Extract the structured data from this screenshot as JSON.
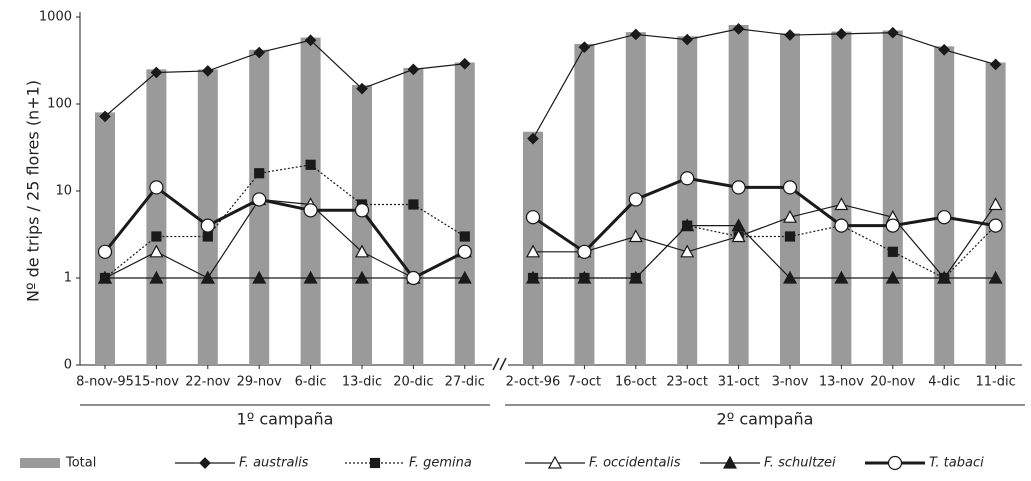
{
  "chart_data": {
    "type": "bar_line",
    "ylabel": "Nº de trips / 25 flores (n+1)",
    "log_scale": true,
    "ylim": [
      0.1,
      1000
    ],
    "yticks": [
      {
        "value": 0.1,
        "label": "0"
      },
      1,
      10,
      100,
      1000
    ],
    "groups": [
      "1º campaña",
      "2º campaña"
    ],
    "categories": [
      [
        "8-nov-95",
        "15-nov",
        "22-nov",
        "29-nov",
        "6-dic",
        "13-dic",
        "20-dic",
        "27-dic"
      ],
      [
        "2-oct-96",
        "7-oct",
        "16-oct",
        "23-oct",
        "31-oct",
        "3-nov",
        "13-nov",
        "20-nov",
        "4-dic",
        "11-dic"
      ]
    ],
    "series": [
      {
        "name": "Total",
        "type": "bar",
        "color": "#9a9a9a",
        "values": [
          [
            80,
            250,
            250,
            420,
            580,
            165,
            260,
            300
          ],
          [
            48,
            490,
            670,
            600,
            810,
            650,
            680,
            700,
            460,
            300
          ]
        ]
      },
      {
        "name": "F. australis",
        "type": "line",
        "color": "#1a1a1a",
        "marker": "diamond",
        "style": "solid",
        "values": [
          [
            72,
            230,
            240,
            390,
            540,
            150,
            250,
            290
          ],
          [
            40,
            450,
            630,
            550,
            730,
            620,
            640,
            660,
            420,
            285
          ]
        ]
      },
      {
        "name": "F. gemina",
        "type": "line",
        "color": "#1a1a1a",
        "marker": "square",
        "style": "dotted",
        "values": [
          [
            1,
            3,
            3,
            16,
            20,
            7,
            7,
            3
          ],
          [
            1,
            1,
            1,
            4,
            3,
            3,
            4,
            2,
            1,
            4
          ]
        ]
      },
      {
        "name": "F. occidentalis",
        "type": "line",
        "color": "#1a1a1a",
        "marker": "open-triangle",
        "style": "solid",
        "values": [
          [
            1,
            2,
            1,
            8,
            7,
            2,
            1,
            2
          ],
          [
            2,
            2,
            3,
            2,
            3,
            5,
            7,
            5,
            1,
            7
          ]
        ]
      },
      {
        "name": "F. schultzei",
        "type": "line",
        "color": "#1a1a1a",
        "marker": "triangle",
        "style": "solid",
        "values": [
          [
            1,
            1,
            1,
            1,
            1,
            1,
            1,
            1
          ],
          [
            1,
            1,
            1,
            4,
            4,
            1,
            1,
            1,
            1,
            1
          ]
        ]
      },
      {
        "name": "T. tabaci",
        "type": "line",
        "color": "#1a1a1a",
        "marker": "circle",
        "style": "bold",
        "values": [
          [
            2,
            11,
            4,
            8,
            6,
            6,
            1,
            2
          ],
          [
            5,
            2,
            8,
            14,
            11,
            11,
            4,
            4,
            5,
            4
          ]
        ]
      }
    ]
  }
}
